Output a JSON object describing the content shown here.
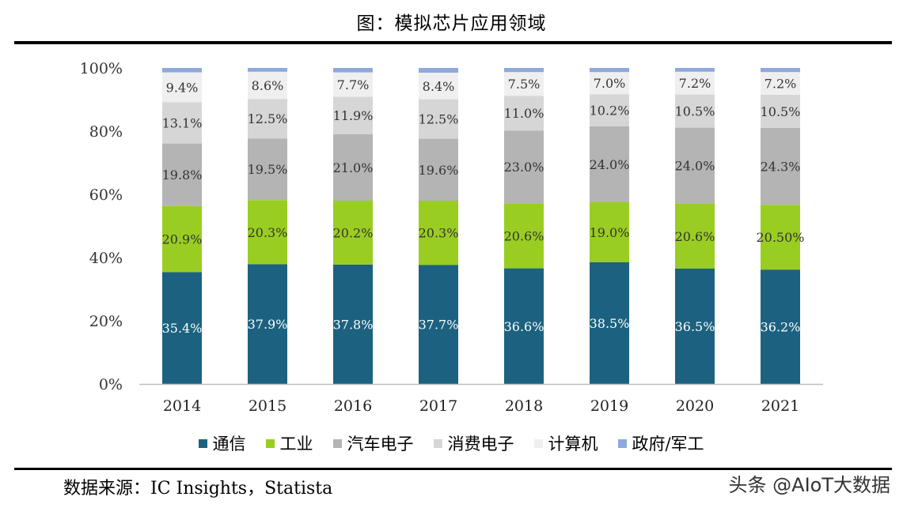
{
  "title": "图：模拟芯片应用领域",
  "source": "数据来源：IC Insights，Statista",
  "watermark": "头条 @AIoT大数据",
  "chart_data": {
    "type": "bar",
    "stacked": true,
    "categories": [
      "2014",
      "2015",
      "2016",
      "2017",
      "2018",
      "2019",
      "2020",
      "2021"
    ],
    "y_ticks": [
      "0%",
      "20%",
      "40%",
      "60%",
      "80%",
      "100%"
    ],
    "ylim": [
      0,
      100
    ],
    "legend_position": "bottom",
    "grid": false,
    "series": [
      {
        "name": "通信",
        "color": "#1c6280",
        "label_color": "#ffffff",
        "values": [
          35.4,
          37.9,
          37.8,
          37.7,
          36.6,
          38.5,
          36.5,
          36.2
        ],
        "labels": [
          "35.4%",
          "37.9%",
          "37.8%",
          "37.7%",
          "36.6%",
          "38.5%",
          "36.5%",
          "36.2%"
        ]
      },
      {
        "name": "工业",
        "color": "#9acd22",
        "label_color": "#333333",
        "values": [
          20.9,
          20.3,
          20.2,
          20.3,
          20.6,
          19.0,
          20.6,
          20.5
        ],
        "labels": [
          "20.9%",
          "20.3%",
          "20.2%",
          "20.3%",
          "20.6%",
          "19.0%",
          "20.6%",
          "20.50%"
        ]
      },
      {
        "name": "汽车电子",
        "color": "#b4b4b4",
        "label_color": "#333333",
        "values": [
          19.8,
          19.5,
          21.0,
          19.6,
          23.0,
          24.0,
          24.0,
          24.3
        ],
        "labels": [
          "19.8%",
          "19.5%",
          "21.0%",
          "19.6%",
          "23.0%",
          "24.0%",
          "24.0%",
          "24.3%"
        ]
      },
      {
        "name": "消费电子",
        "color": "#d6d6d6",
        "label_color": "#333333",
        "values": [
          13.1,
          12.5,
          11.9,
          12.5,
          11.0,
          10.2,
          10.5,
          10.5
        ],
        "labels": [
          "13.1%",
          "12.5%",
          "11.9%",
          "12.5%",
          "11.0%",
          "10.2%",
          "10.5%",
          "10.5%"
        ]
      },
      {
        "name": "计算机",
        "color": "#efefef",
        "label_color": "#333333",
        "values": [
          9.4,
          8.6,
          7.7,
          8.4,
          7.5,
          7.0,
          7.2,
          7.2
        ],
        "labels": [
          "9.4%",
          "8.6%",
          "7.7%",
          "8.4%",
          "7.5%",
          "7.0%",
          "7.2%",
          "7.2%"
        ]
      },
      {
        "name": "政府/军工",
        "color": "#8ea9db",
        "label_color": "#333333",
        "values": [
          1.4,
          1.2,
          1.4,
          1.5,
          1.3,
          1.3,
          1.2,
          1.3
        ],
        "labels": []
      }
    ]
  }
}
